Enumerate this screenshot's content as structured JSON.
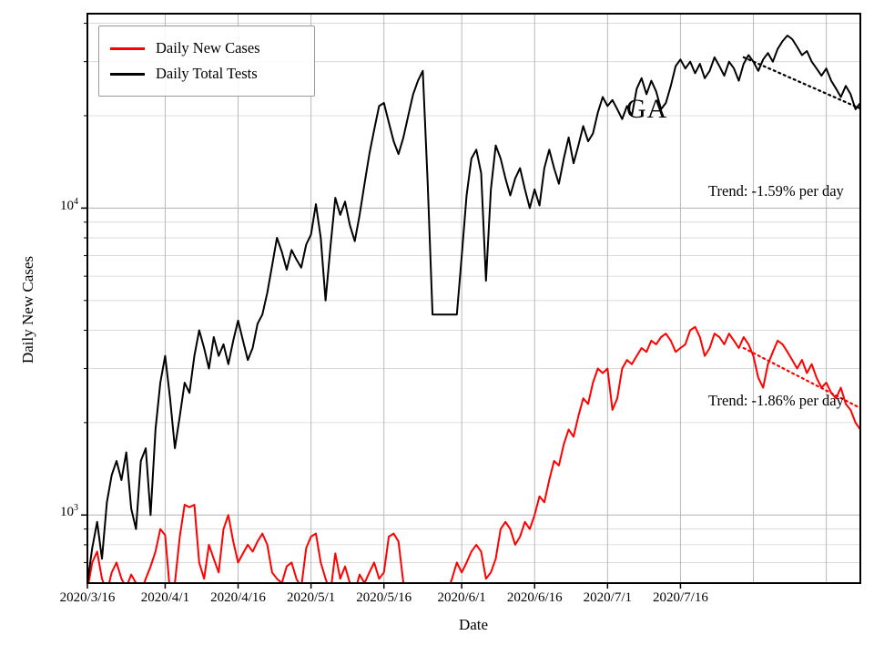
{
  "annotations": {
    "state": "GA",
    "trend_tests": "Trend: -1.59% per day",
    "trend_cases": "Trend: -1.86% per day"
  },
  "axes": {
    "x_label": "Date",
    "y_label": "Daily New Cases",
    "y_ticks": [
      {
        "base": "10",
        "exp": "4"
      },
      {
        "base": "10",
        "exp": "3"
      }
    ]
  },
  "legend": {
    "items": [
      {
        "label": "Daily New Cases",
        "color": "#ff0000"
      },
      {
        "label": "Daily Total Tests",
        "color": "#000000"
      }
    ]
  },
  "chart_data": {
    "type": "line",
    "yscale": "log",
    "x_start_date": "2020-03-16",
    "x_unit": "day",
    "xlim": [
      0,
      159
    ],
    "ylim": [
      600,
      43000
    ],
    "grid": true,
    "legend_position": "upper-left",
    "x_tick_positions": [
      0,
      16,
      31,
      46,
      61,
      77,
      92,
      107,
      122
    ],
    "x_tick_labels": [
      "2020/3/16",
      "2020/4/1",
      "2020/4/16",
      "2020/5/1",
      "2020/5/16",
      "2020/6/1",
      "2020/6/16",
      "2020/7/1",
      "2020/7/16"
    ],
    "x_grid_extra": [
      137,
      152
    ],
    "series": [
      {
        "name": "Daily New Cases",
        "color": "#ff0000",
        "values": [
          570,
          700,
          760,
          620,
          560,
          650,
          700,
          620,
          580,
          640,
          600,
          560,
          620,
          680,
          760,
          900,
          860,
          560,
          600,
          850,
          1080,
          1060,
          1080,
          700,
          620,
          800,
          720,
          650,
          900,
          1000,
          820,
          700,
          750,
          800,
          760,
          820,
          870,
          800,
          650,
          620,
          600,
          680,
          700,
          620,
          580,
          780,
          850,
          870,
          700,
          620,
          560,
          750,
          620,
          680,
          600,
          560,
          640,
          600,
          650,
          700,
          620,
          650,
          850,
          870,
          820,
          600,
          560,
          520,
          540,
          560,
          580,
          520,
          560,
          600,
          560,
          620,
          700,
          650,
          700,
          760,
          800,
          760,
          620,
          650,
          720,
          900,
          950,
          900,
          800,
          850,
          950,
          900,
          1000,
          1150,
          1100,
          1300,
          1500,
          1450,
          1700,
          1900,
          1800,
          2100,
          2400,
          2300,
          2700,
          3000,
          2900,
          3000,
          2200,
          2400,
          3000,
          3200,
          3100,
          3300,
          3500,
          3400,
          3700,
          3600,
          3800,
          3900,
          3700,
          3400,
          3500,
          3600,
          4000,
          4100,
          3800,
          3300,
          3500,
          3900,
          3800,
          3600,
          3900,
          3700,
          3500,
          3800,
          3600,
          3300,
          2800,
          2600,
          3100,
          3400,
          3700,
          3600,
          3400,
          3200,
          3000,
          3200,
          2900,
          3100,
          2800,
          2600,
          2700,
          2500,
          2400,
          2600,
          2300,
          2200,
          2000,
          1900
        ]
      },
      {
        "name": "Daily Total Tests",
        "color": "#000000",
        "values": [
          600,
          780,
          950,
          720,
          1100,
          1350,
          1500,
          1300,
          1600,
          1050,
          900,
          1500,
          1650,
          1000,
          1900,
          2700,
          3300,
          2400,
          1650,
          2100,
          2700,
          2500,
          3300,
          4000,
          3500,
          3000,
          3800,
          3300,
          3600,
          3100,
          3700,
          4300,
          3700,
          3200,
          3500,
          4200,
          4500,
          5300,
          6500,
          8000,
          7200,
          6300,
          7300,
          6800,
          6400,
          7600,
          8200,
          10300,
          8000,
          5000,
          7500,
          10800,
          9500,
          10500,
          8800,
          7800,
          9500,
          12000,
          15000,
          18000,
          21500,
          22000,
          19000,
          16500,
          15000,
          17000,
          20000,
          23500,
          26000,
          28000,
          12000,
          4500,
          4500,
          4500,
          4500,
          4500,
          4500,
          7000,
          11000,
          14500,
          15500,
          13000,
          5800,
          11500,
          16000,
          14500,
          12500,
          11000,
          12500,
          13500,
          11500,
          10000,
          11500,
          10200,
          13500,
          15500,
          13500,
          12000,
          14500,
          17000,
          14000,
          16000,
          18500,
          16500,
          17500,
          20500,
          23000,
          21500,
          22500,
          21000,
          19500,
          21500,
          20000,
          24500,
          26500,
          23500,
          26000,
          24000,
          21000,
          22000,
          25000,
          29000,
          30500,
          28500,
          30000,
          27500,
          29500,
          26500,
          28000,
          31000,
          29000,
          27000,
          30000,
          28500,
          26000,
          29500,
          31500,
          30000,
          28000,
          30500,
          32000,
          30000,
          33000,
          35000,
          36500,
          35500,
          33500,
          31500,
          32500,
          30000,
          28500,
          27000,
          28500,
          26000,
          24500,
          23000,
          25000,
          23500,
          21000,
          22000
        ]
      }
    ],
    "trends": [
      {
        "series": "Daily Total Tests",
        "label": "Trend: -1.59% per day",
        "rate_pct_per_day": -1.59,
        "start_index": 135,
        "start_value": 31000,
        "color": "#000000",
        "style": "dotted"
      },
      {
        "series": "Daily New Cases",
        "label": "Trend: -1.86% per day",
        "rate_pct_per_day": -1.86,
        "start_index": 135,
        "start_value": 3500,
        "color": "#ff0000",
        "style": "dotted"
      }
    ]
  }
}
